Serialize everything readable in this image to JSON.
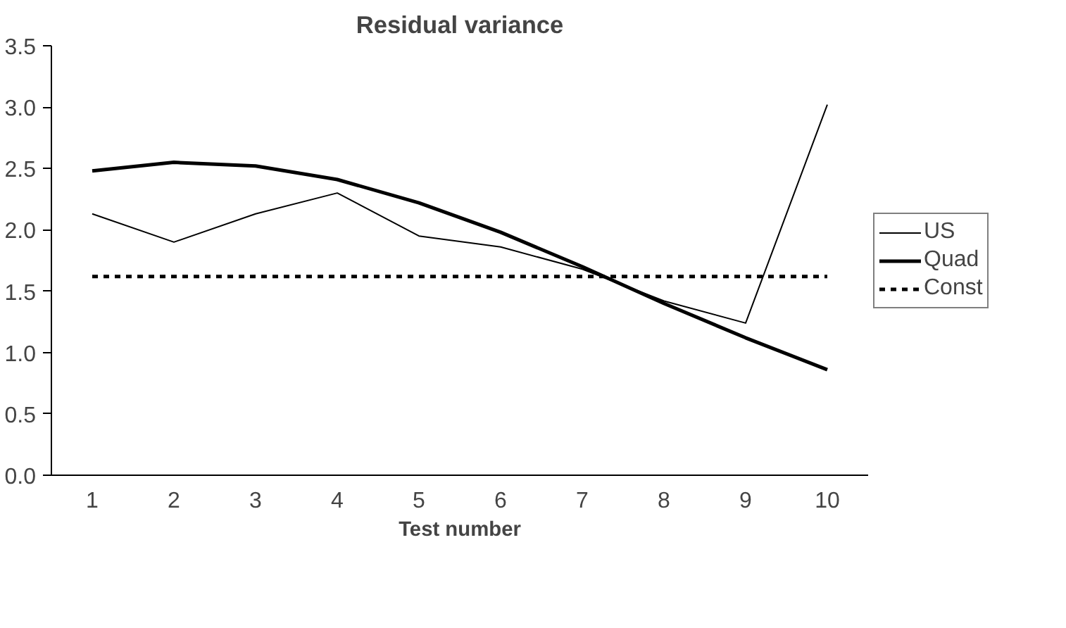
{
  "chart_data": {
    "type": "line",
    "title": "Residual variance",
    "xlabel": "Test number",
    "categories": [
      "1",
      "2",
      "3",
      "4",
      "5",
      "6",
      "7",
      "8",
      "9",
      "10"
    ],
    "series": [
      {
        "name": "US",
        "color": "#000000",
        "line_style": "solid",
        "values": [
          2.13,
          1.9,
          2.13,
          2.3,
          1.95,
          1.86,
          1.68,
          1.42,
          1.24,
          3.02
        ]
      },
      {
        "name": "Quad",
        "color": "#000000",
        "line_style": "solid",
        "values": [
          2.48,
          2.55,
          2.52,
          2.41,
          2.22,
          1.98,
          1.7,
          1.4,
          1.12,
          0.86
        ]
      },
      {
        "name": "Const",
        "color": "#000000",
        "line_style": "dashed",
        "values": [
          1.62,
          1.62,
          1.62,
          1.62,
          1.62,
          1.62,
          1.62,
          1.62,
          1.62,
          1.62
        ]
      }
    ],
    "ylim": [
      0,
      3.5
    ],
    "yticks": [
      {
        "value": 0,
        "label": "0.0"
      },
      0.5,
      {
        "value": 1,
        "label": "1.0"
      },
      1.5,
      {
        "value": 2,
        "label": "2.0"
      },
      2.5,
      {
        "value": 3,
        "label": "3.0"
      },
      3.5
    ],
    "grid": false,
    "legend": "right",
    "marker": "none"
  }
}
